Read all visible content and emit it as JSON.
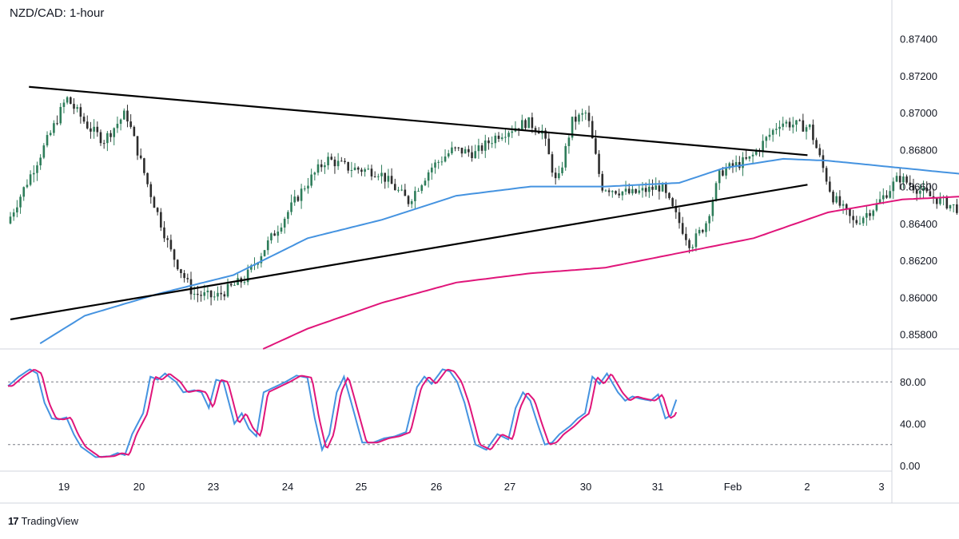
{
  "title": "NZD/CAD: 1-hour",
  "brand": {
    "logo": "17",
    "name": "TradingView"
  },
  "colors": {
    "candle_up": "#2e7d5a",
    "candle_down": "#2d2d2d",
    "sma_fast": "#4593e0",
    "sma_slow": "#e0157a",
    "trendline": "#000000",
    "stoch_k": "#4593e0",
    "stoch_d": "#e0157a",
    "grid": "#d1d4dc"
  },
  "chart_data": [
    {
      "type": "candlestick",
      "title": "NZD/CAD: 1-hour",
      "x_ticks": [
        "19",
        "20",
        "23",
        "24",
        "25",
        "26",
        "27",
        "30",
        "31",
        "Feb",
        "2",
        "3"
      ],
      "y_ticks": [
        "0.87400",
        "0.87200",
        "0.87000",
        "0.86800",
        "0.86600",
        "0.86400",
        "0.86200",
        "0.86000",
        "0.85800"
      ],
      "ylim": [
        0.8572,
        0.8755
      ],
      "price_anchors": [
        {
          "x": 0.0,
          "p": 0.864
        },
        {
          "x": 0.3,
          "p": 0.8665
        },
        {
          "x": 0.6,
          "p": 0.869
        },
        {
          "x": 0.8,
          "p": 0.8708
        },
        {
          "x": 1.1,
          "p": 0.8692
        },
        {
          "x": 1.3,
          "p": 0.8685
        },
        {
          "x": 1.6,
          "p": 0.87
        },
        {
          "x": 1.9,
          "p": 0.866
        },
        {
          "x": 2.2,
          "p": 0.8625
        },
        {
          "x": 2.5,
          "p": 0.8602
        },
        {
          "x": 2.8,
          "p": 0.86
        },
        {
          "x": 3.2,
          "p": 0.861
        },
        {
          "x": 3.6,
          "p": 0.8635
        },
        {
          "x": 4.0,
          "p": 0.866
        },
        {
          "x": 4.3,
          "p": 0.8675
        },
        {
          "x": 4.6,
          "p": 0.867
        },
        {
          "x": 5.0,
          "p": 0.8668
        },
        {
          "x": 5.4,
          "p": 0.8652
        },
        {
          "x": 5.7,
          "p": 0.867
        },
        {
          "x": 6.0,
          "p": 0.868
        },
        {
          "x": 6.3,
          "p": 0.8678
        },
        {
          "x": 6.6,
          "p": 0.8688
        },
        {
          "x": 7.0,
          "p": 0.8695
        },
        {
          "x": 7.2,
          "p": 0.869
        },
        {
          "x": 7.4,
          "p": 0.866
        },
        {
          "x": 7.6,
          "p": 0.8695
        },
        {
          "x": 7.8,
          "p": 0.87
        },
        {
          "x": 8.0,
          "p": 0.866
        },
        {
          "x": 8.4,
          "p": 0.8656
        },
        {
          "x": 8.8,
          "p": 0.866
        },
        {
          "x": 9.2,
          "p": 0.8628
        },
        {
          "x": 9.4,
          "p": 0.864
        },
        {
          "x": 9.6,
          "p": 0.8668
        },
        {
          "x": 10.0,
          "p": 0.8675
        },
        {
          "x": 10.4,
          "p": 0.8695
        },
        {
          "x": 10.8,
          "p": 0.8692
        },
        {
          "x": 11.1,
          "p": 0.8655
        },
        {
          "x": 11.4,
          "p": 0.864
        },
        {
          "x": 11.7,
          "p": 0.865
        },
        {
          "x": 12.0,
          "p": 0.8665
        },
        {
          "x": 12.4,
          "p": 0.8655
        },
        {
          "x": 12.8,
          "p": 0.8648
        },
        {
          "x": 13.2,
          "p": 0.8632
        },
        {
          "x": 13.6,
          "p": 0.863
        },
        {
          "x": 14.0,
          "p": 0.864
        },
        {
          "x": 14.3,
          "p": 0.8654
        },
        {
          "x": 14.8,
          "p": 0.865
        },
        {
          "x": 15.2,
          "p": 0.866
        },
        {
          "x": 15.6,
          "p": 0.8656
        },
        {
          "x": 16.0,
          "p": 0.866
        },
        {
          "x": 16.2,
          "p": 0.8648
        },
        {
          "x": 16.4,
          "p": 0.8652
        },
        {
          "x": 16.55,
          "p": 0.8656
        }
      ],
      "sma_fast_anchors": [
        {
          "x": 0.4,
          "p": 0.8575
        },
        {
          "x": 1.0,
          "p": 0.859
        },
        {
          "x": 2.0,
          "p": 0.8602
        },
        {
          "x": 3.0,
          "p": 0.8612
        },
        {
          "x": 4.0,
          "p": 0.8632
        },
        {
          "x": 5.0,
          "p": 0.8642
        },
        {
          "x": 6.0,
          "p": 0.8655
        },
        {
          "x": 7.0,
          "p": 0.866
        },
        {
          "x": 8.0,
          "p": 0.866
        },
        {
          "x": 9.0,
          "p": 0.8662
        },
        {
          "x": 9.6,
          "p": 0.867
        },
        {
          "x": 10.4,
          "p": 0.8675
        },
        {
          "x": 11.0,
          "p": 0.8674
        },
        {
          "x": 12.0,
          "p": 0.867
        },
        {
          "x": 13.0,
          "p": 0.8666
        },
        {
          "x": 14.0,
          "p": 0.866
        },
        {
          "x": 15.0,
          "p": 0.866
        },
        {
          "x": 16.0,
          "p": 0.8658
        },
        {
          "x": 16.55,
          "p": 0.8657
        }
      ],
      "sma_slow_anchors": [
        {
          "x": 3.4,
          "p": 0.8572
        },
        {
          "x": 4.0,
          "p": 0.8583
        },
        {
          "x": 5.0,
          "p": 0.8597
        },
        {
          "x": 6.0,
          "p": 0.8608
        },
        {
          "x": 7.0,
          "p": 0.8613
        },
        {
          "x": 8.0,
          "p": 0.8616
        },
        {
          "x": 9.0,
          "p": 0.8624
        },
        {
          "x": 10.0,
          "p": 0.8632
        },
        {
          "x": 11.0,
          "p": 0.8646
        },
        {
          "x": 12.0,
          "p": 0.8653
        },
        {
          "x": 13.0,
          "p": 0.8655
        },
        {
          "x": 14.0,
          "p": 0.8657
        },
        {
          "x": 15.0,
          "p": 0.866
        },
        {
          "x": 16.0,
          "p": 0.8659
        },
        {
          "x": 16.55,
          "p": 0.8658
        }
      ],
      "trendlines": [
        {
          "x1": 0.0,
          "p1": 0.8588,
          "x2": 21.45,
          "p2": 0.8661
        },
        {
          "x1": 0.5,
          "p1": 0.8714,
          "x2": 21.45,
          "p2": 0.8677
        }
      ]
    },
    {
      "type": "line",
      "y_ticks": [
        "80.00",
        "40.00",
        "0.00"
      ],
      "ylim": [
        0,
        100
      ],
      "levels": [
        80,
        20
      ],
      "stoch_anchors": [
        {
          "x": 0.0,
          "v": 76
        },
        {
          "x": 0.3,
          "v": 85
        },
        {
          "x": 0.6,
          "v": 92
        },
        {
          "x": 0.8,
          "v": 88
        },
        {
          "x": 1.0,
          "v": 60
        },
        {
          "x": 1.2,
          "v": 45
        },
        {
          "x": 1.4,
          "v": 44
        },
        {
          "x": 1.6,
          "v": 46
        },
        {
          "x": 1.8,
          "v": 30
        },
        {
          "x": 2.0,
          "v": 18
        },
        {
          "x": 2.4,
          "v": 8
        },
        {
          "x": 2.8,
          "v": 9
        },
        {
          "x": 3.0,
          "v": 12
        },
        {
          "x": 3.2,
          "v": 10
        },
        {
          "x": 3.4,
          "v": 30
        },
        {
          "x": 3.7,
          "v": 50
        },
        {
          "x": 3.9,
          "v": 85
        },
        {
          "x": 4.1,
          "v": 82
        },
        {
          "x": 4.3,
          "v": 88
        },
        {
          "x": 4.6,
          "v": 80
        },
        {
          "x": 4.8,
          "v": 70
        },
        {
          "x": 5.1,
          "v": 72
        },
        {
          "x": 5.3,
          "v": 70
        },
        {
          "x": 5.5,
          "v": 55
        },
        {
          "x": 5.7,
          "v": 82
        },
        {
          "x": 5.9,
          "v": 80
        },
        {
          "x": 6.2,
          "v": 40
        },
        {
          "x": 6.4,
          "v": 50
        },
        {
          "x": 6.6,
          "v": 35
        },
        {
          "x": 6.8,
          "v": 28
        },
        {
          "x": 7.0,
          "v": 70
        },
        {
          "x": 7.3,
          "v": 75
        },
        {
          "x": 7.6,
          "v": 80
        },
        {
          "x": 7.9,
          "v": 86
        },
        {
          "x": 8.2,
          "v": 84
        },
        {
          "x": 8.4,
          "v": 45
        },
        {
          "x": 8.6,
          "v": 15
        },
        {
          "x": 8.8,
          "v": 30
        },
        {
          "x": 9.0,
          "v": 70
        },
        {
          "x": 9.2,
          "v": 85
        },
        {
          "x": 9.4,
          "v": 60
        },
        {
          "x": 9.7,
          "v": 22
        },
        {
          "x": 10.0,
          "v": 22
        },
        {
          "x": 10.3,
          "v": 26
        },
        {
          "x": 10.6,
          "v": 28
        },
        {
          "x": 10.9,
          "v": 32
        },
        {
          "x": 11.2,
          "v": 75
        },
        {
          "x": 11.4,
          "v": 85
        },
        {
          "x": 11.6,
          "v": 78
        },
        {
          "x": 11.9,
          "v": 92
        },
        {
          "x": 12.1,
          "v": 90
        },
        {
          "x": 12.3,
          "v": 80
        },
        {
          "x": 12.5,
          "v": 60
        },
        {
          "x": 12.8,
          "v": 20
        },
        {
          "x": 13.1,
          "v": 15
        },
        {
          "x": 13.4,
          "v": 30
        },
        {
          "x": 13.7,
          "v": 25
        },
        {
          "x": 13.9,
          "v": 55
        },
        {
          "x": 14.1,
          "v": 70
        },
        {
          "x": 14.3,
          "v": 62
        },
        {
          "x": 14.5,
          "v": 40
        },
        {
          "x": 14.7,
          "v": 20
        },
        {
          "x": 14.9,
          "v": 22
        },
        {
          "x": 15.1,
          "v": 30
        },
        {
          "x": 15.4,
          "v": 38
        },
        {
          "x": 15.6,
          "v": 45
        },
        {
          "x": 15.8,
          "v": 50
        },
        {
          "x": 16.0,
          "v": 85
        },
        {
          "x": 16.2,
          "v": 78
        },
        {
          "x": 16.4,
          "v": 88
        },
        {
          "x": 16.7,
          "v": 70
        },
        {
          "x": 16.9,
          "v": 62
        },
        {
          "x": 17.1,
          "v": 66
        },
        {
          "x": 17.3,
          "v": 64
        },
        {
          "x": 17.6,
          "v": 62
        },
        {
          "x": 17.8,
          "v": 68
        },
        {
          "x": 18.0,
          "v": 45
        },
        {
          "x": 18.15,
          "v": 48
        },
        {
          "x": 18.3,
          "v": 63
        }
      ]
    }
  ]
}
